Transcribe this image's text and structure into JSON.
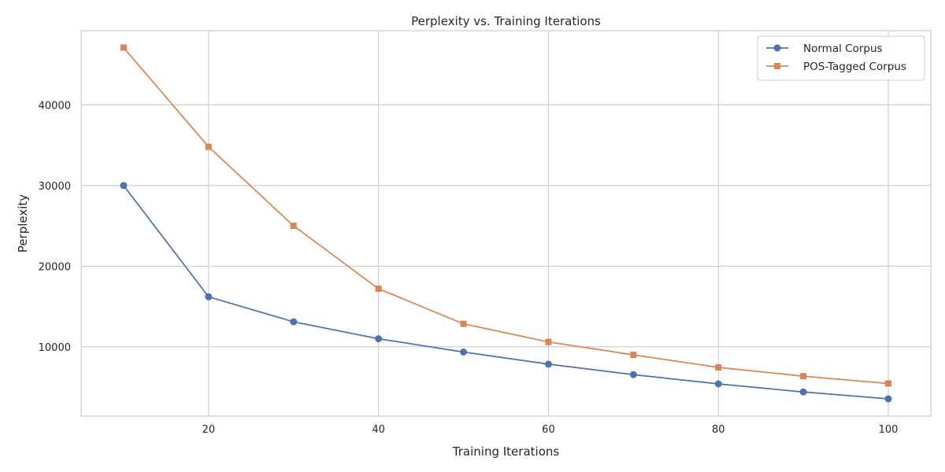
{
  "chart_data": {
    "type": "line",
    "title": "Perplexity vs. Training Iterations",
    "xlabel": "Training Iterations",
    "ylabel": "Perplexity",
    "x": [
      10,
      20,
      30,
      40,
      50,
      60,
      70,
      80,
      90,
      100
    ],
    "xlim": [
      5,
      105
    ],
    "ylim": [
      1400,
      49200
    ],
    "xticks": [
      20,
      40,
      60,
      80,
      100
    ],
    "yticks": [
      10000,
      20000,
      30000,
      40000
    ],
    "grid": true,
    "legend_position": "top-right",
    "series": [
      {
        "name": "Normal Corpus",
        "marker": "circle",
        "color": "#4c72b0",
        "values": [
          30000,
          16200,
          13100,
          11000,
          9350,
          7850,
          6550,
          5400,
          4400,
          3550
        ]
      },
      {
        "name": "POS-Tagged Corpus",
        "marker": "square",
        "color": "#dd8452",
        "values": [
          47100,
          34800,
          25000,
          17200,
          12850,
          10600,
          9000,
          7450,
          6350,
          5450
        ]
      }
    ]
  }
}
